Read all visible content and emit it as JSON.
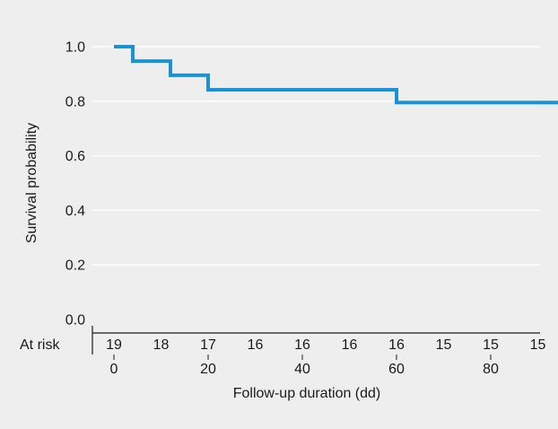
{
  "chart_data": {
    "type": "line",
    "step": true,
    "xlabel": "Follow-up duration (dd)",
    "ylabel": "Survival probability",
    "xlim": [
      0,
      95
    ],
    "ylim": [
      0,
      1.0
    ],
    "x_ticks": [
      0,
      20,
      40,
      60,
      80
    ],
    "y_ticks": [
      "0.0",
      "0.2",
      "0.4",
      "0.6",
      "0.8",
      "1.0"
    ],
    "grid": "horizontal",
    "series": [
      {
        "color": "#1a93d6",
        "x": [
          0,
          4,
          4,
          12,
          12,
          20,
          20,
          60,
          60,
          95
        ],
        "y": [
          1.0,
          1.0,
          0.947,
          0.947,
          0.895,
          0.895,
          0.842,
          0.842,
          0.795,
          0.795
        ]
      }
    ],
    "at_risk": {
      "label": "At risk",
      "x": [
        0,
        10,
        20,
        30,
        40,
        50,
        60,
        70,
        80,
        90
      ],
      "counts": [
        "19",
        "18",
        "17",
        "16",
        "16",
        "16",
        "16",
        "15",
        "15",
        "15"
      ]
    }
  }
}
